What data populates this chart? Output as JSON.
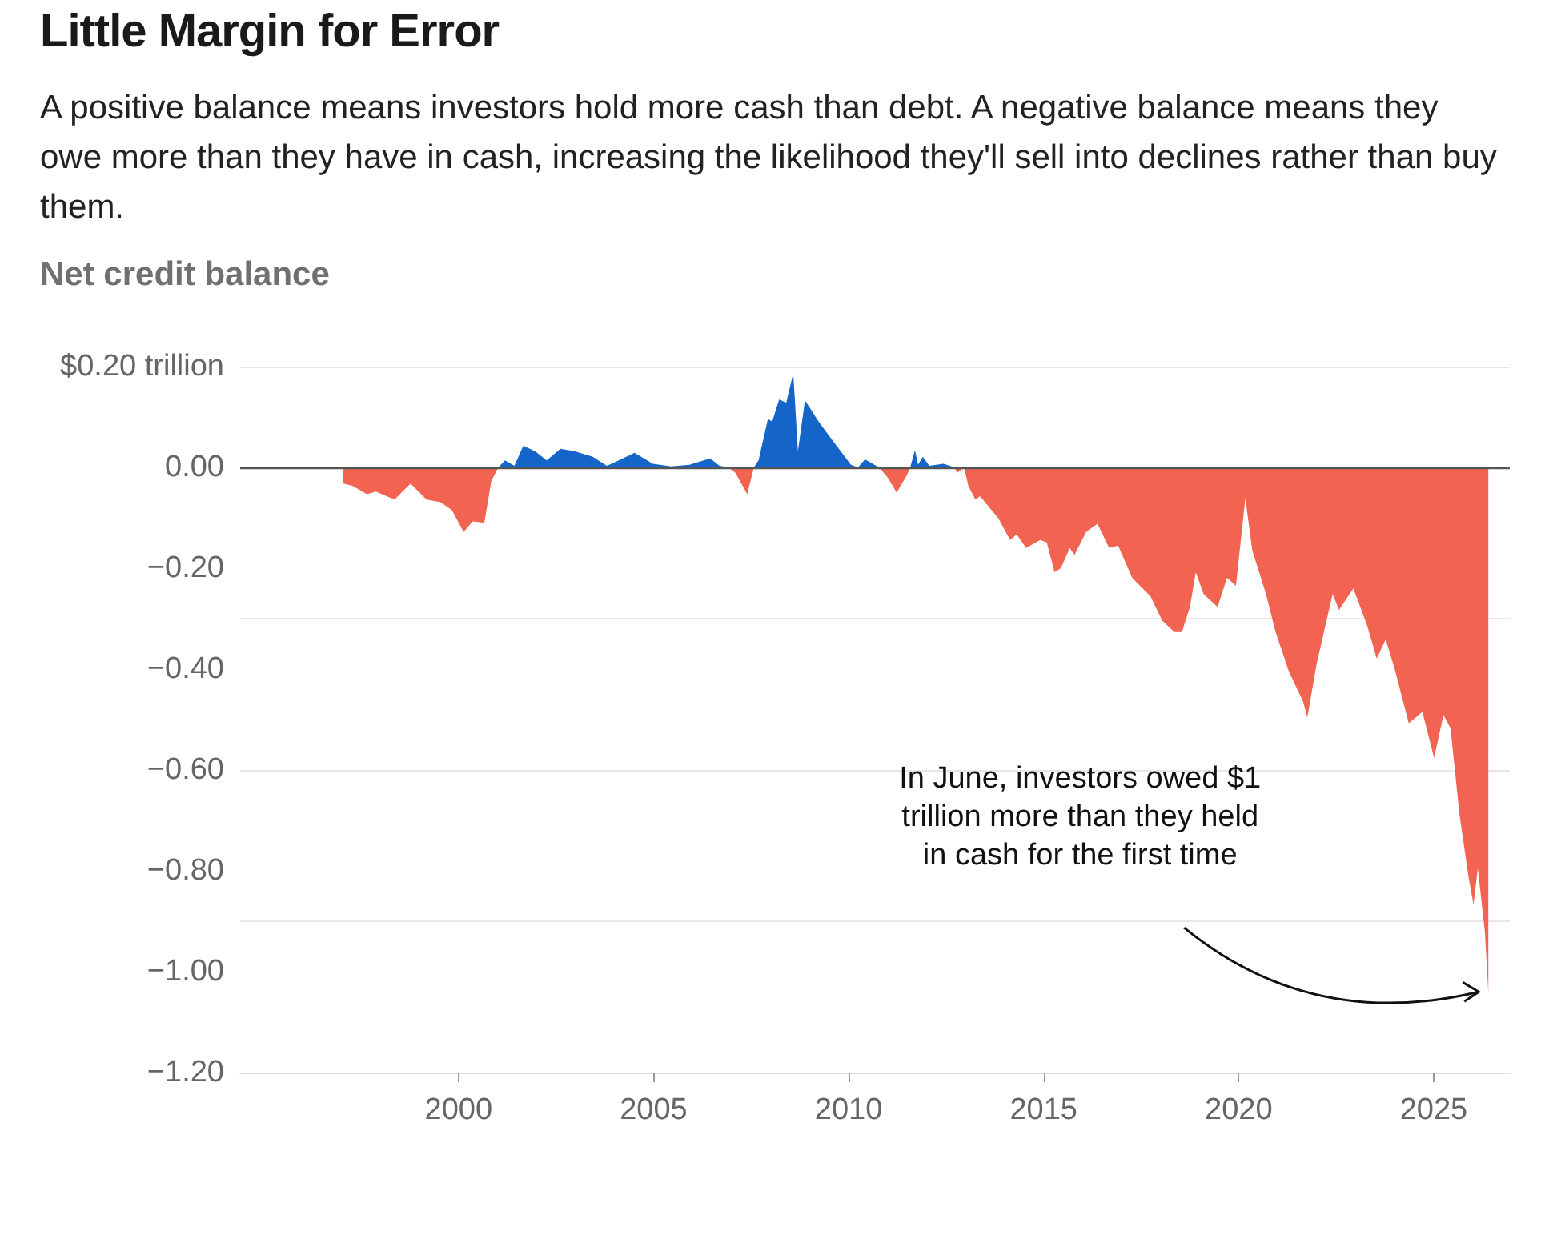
{
  "chart_data": {
    "type": "area",
    "title": "Little Margin for Error",
    "subtitle": "A positive balance means investors hold more cash than debt. A negative balance means they owe more than they have in cash, increasing the likelihood they'll sell into declines rather than buy them.",
    "ylabel": "Net credit balance",
    "series": [
      {
        "color": "#1565c8",
        "x": [
          2001.02,
          2001.19,
          2001.43,
          2001.66,
          2001.96,
          2002.26,
          2002.61,
          2002.97,
          2003.44,
          2003.8,
          2004.03,
          2004.51,
          2004.98,
          2005.45,
          2005.92,
          2006.45,
          2006.69,
          2006.93,
          2007.57,
          2007.69,
          2007.93,
          2008.04,
          2008.22,
          2008.4,
          2008.58,
          2008.7,
          2008.88,
          2009.23,
          2009.59,
          2010.06,
          2010.24,
          2010.42,
          2010.78,
          2011.58,
          2011.7,
          2011.78,
          2011.9,
          2012.07,
          2012.43,
          2012.72
        ],
        "values": [
          0,
          0.014,
          0.003,
          0.043,
          0.032,
          0.014,
          0.037,
          0.032,
          0.021,
          0.003,
          0.011,
          0.029,
          0.007,
          0.002,
          0.005,
          0.018,
          0.003,
          0,
          0,
          0.014,
          0.096,
          0.091,
          0.135,
          0.128,
          0.187,
          0.032,
          0.133,
          0.091,
          0.053,
          0.005,
          0,
          0.016,
          0,
          0,
          0.034,
          0.005,
          0.021,
          0.003,
          0.007,
          0
        ]
      },
      {
        "color": "#f26451",
        "x": [
          1997.03,
          1997.05,
          1997.29,
          1997.65,
          1997.88,
          1998.36,
          1998.77,
          1999.18,
          1999.54,
          1999.83,
          2000.13,
          2000.36,
          2000.66,
          2000.84,
          2001.02,
          2006.93,
          2007.1,
          2007.4,
          2007.52,
          2007.57,
          2010.78,
          2011.01,
          2011.23,
          2011.49,
          2011.58,
          2012.72,
          2012.78,
          2012.96,
          2013.07,
          2013.25,
          2013.37,
          2013.84,
          2014.14,
          2014.31,
          2014.55,
          2014.91,
          2015.08,
          2015.28,
          2015.44,
          2015.67,
          2015.79,
          2016.09,
          2016.38,
          2016.68,
          2016.91,
          2017.27,
          2017.74,
          2018.04,
          2018.33,
          2018.55,
          2018.75,
          2018.9,
          2019.1,
          2019.46,
          2019.7,
          2019.93,
          2020.17,
          2020.35,
          2020.7,
          2020.94,
          2021.29,
          2021.65,
          2021.76,
          2022.0,
          2022.41,
          2022.57,
          2022.94,
          2023.3,
          2023.54,
          2023.77,
          2024.0,
          2024.36,
          2024.71,
          2025.01,
          2025.25,
          2025.43,
          2025.66,
          2025.9,
          2026.02,
          2026.13,
          2026.31,
          2026.4
        ],
        "values": [
          0,
          -0.032,
          -0.037,
          -0.053,
          -0.048,
          -0.064,
          -0.032,
          -0.064,
          -0.069,
          -0.085,
          -0.128,
          -0.107,
          -0.11,
          -0.027,
          0,
          0,
          -0.011,
          -0.053,
          -0.016,
          0,
          0,
          -0.021,
          -0.05,
          -0.016,
          0,
          0,
          -0.011,
          0,
          -0.037,
          -0.064,
          -0.057,
          -0.101,
          -0.144,
          -0.133,
          -0.16,
          -0.144,
          -0.149,
          -0.208,
          -0.2,
          -0.16,
          -0.174,
          -0.128,
          -0.112,
          -0.16,
          -0.155,
          -0.219,
          -0.256,
          -0.304,
          -0.325,
          -0.325,
          -0.277,
          -0.208,
          -0.251,
          -0.277,
          -0.219,
          -0.235,
          -0.061,
          -0.165,
          -0.251,
          -0.325,
          -0.405,
          -0.464,
          -0.496,
          -0.389,
          -0.251,
          -0.283,
          -0.24,
          -0.315,
          -0.379,
          -0.341,
          -0.4,
          -0.507,
          -0.485,
          -0.576,
          -0.491,
          -0.517,
          -0.688,
          -0.816,
          -0.867,
          -0.795,
          -0.92,
          -1.04
        ]
      }
    ],
    "xlim": [
      1994.4,
      2026.95
    ],
    "xticks": [
      2000,
      2005,
      2010,
      2015,
      2020,
      2025
    ],
    "ylim": [
      -1.2,
      0.2
    ],
    "yticks": [
      {
        "value": 0.2,
        "label": "$0.20 trillion"
      },
      {
        "value": 0,
        "label": "0.00"
      },
      {
        "value": -0.2,
        "label": "−0.20"
      },
      {
        "value": -0.4,
        "label": "−0.40"
      },
      {
        "value": -0.6,
        "label": "−0.60"
      },
      {
        "value": -0.8,
        "label": "−0.80"
      },
      {
        "value": -1,
        "label": "−1.00"
      },
      {
        "value": -1.2,
        "label": "−1.20"
      }
    ],
    "grid": "y",
    "ref_lines": [
      {
        "axis": "y",
        "value": 0,
        "color": "#555555"
      }
    ],
    "annotations": [
      "In June, investors owed $1 trillion more than they held in cash for the first time"
    ]
  }
}
